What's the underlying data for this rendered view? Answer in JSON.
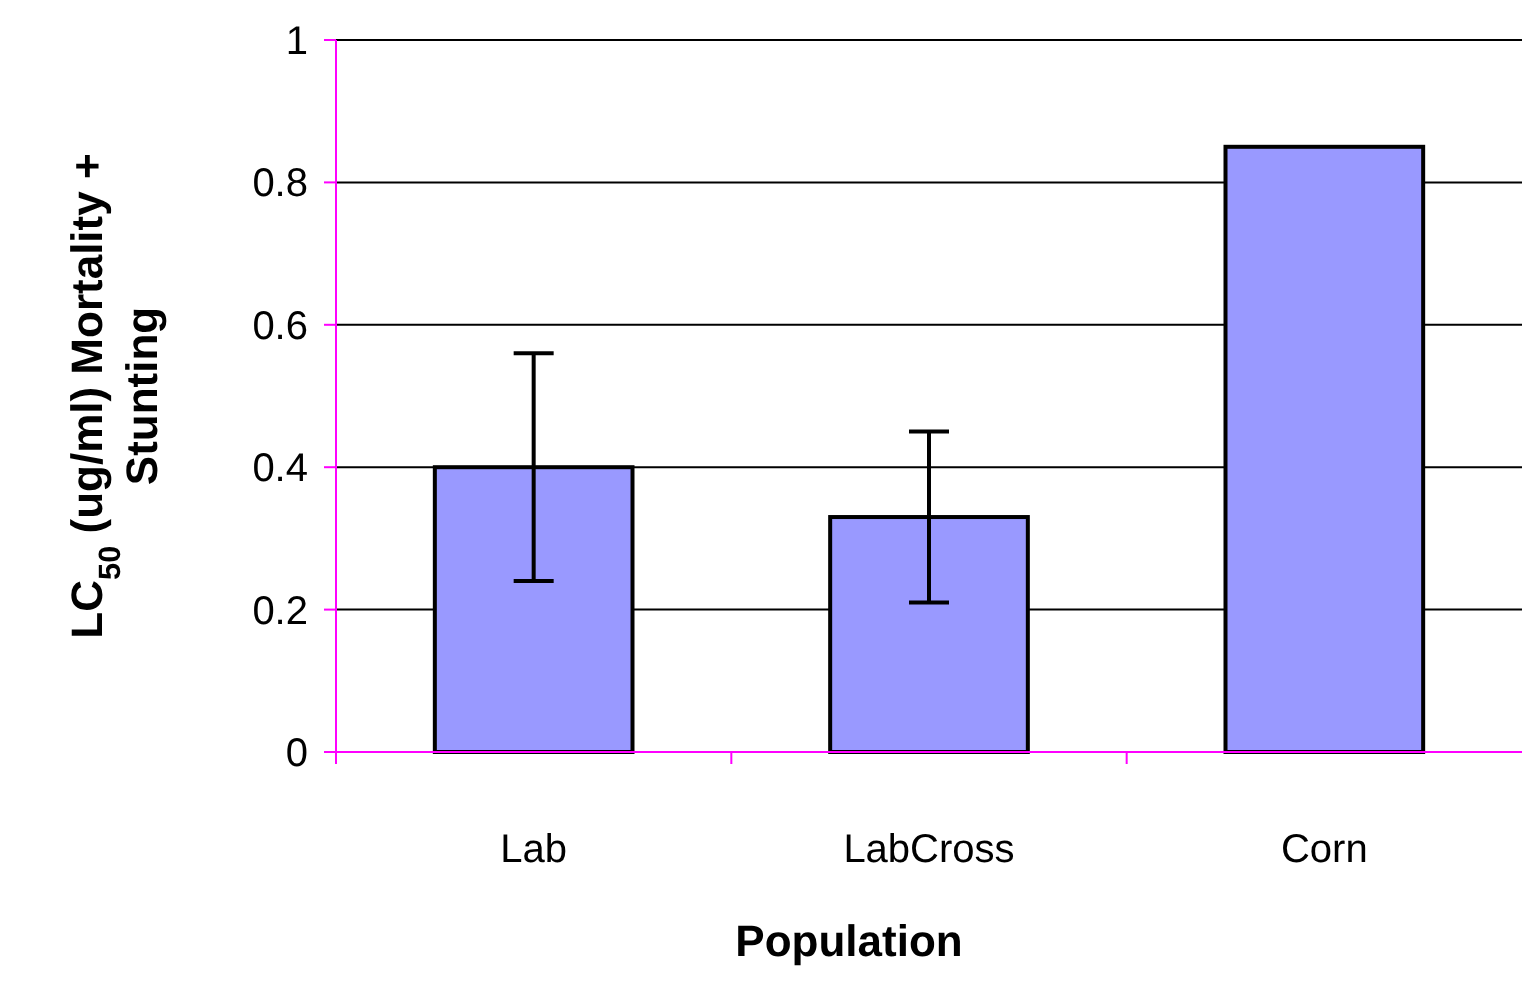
{
  "chart_data": {
    "type": "bar",
    "xlabel": "Population",
    "ylabel": "LC$_{50}$ (ug/ml) Mortality + Stunting",
    "categories": [
      "Lab",
      "LabCross",
      "Corn"
    ],
    "values": [
      0.4,
      0.33,
      0.85
    ],
    "color": "#9999ff",
    "errors": [
      [
        0.24,
        0.56
      ],
      [
        0.21,
        0.45
      ],
      null
    ],
    "ylim": [
      0,
      1
    ],
    "yticks": [
      0,
      0.2,
      0.4,
      0.6,
      0.8,
      1
    ],
    "grid": "y"
  }
}
